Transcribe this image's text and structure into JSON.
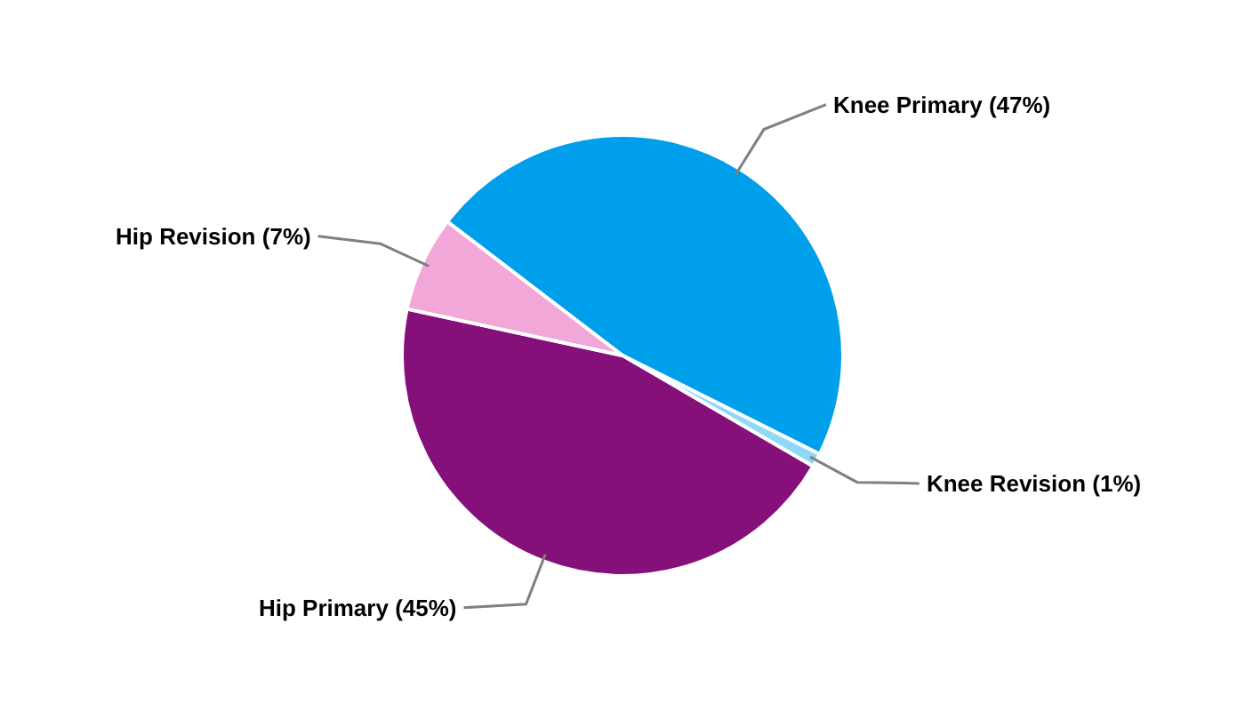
{
  "chart_data": {
    "type": "pie",
    "categories": [
      "Knee Primary",
      "Knee Revision",
      "Hip Primary",
      "Hip Revision"
    ],
    "values": [
      47,
      1,
      45,
      7
    ],
    "value_labels": [
      "(47%)",
      "(1%)",
      "(45%)",
      "(7%)"
    ],
    "colors": [
      "#009fec",
      "#8fd8f8",
      "#85107a",
      "#f1a8d8"
    ]
  }
}
